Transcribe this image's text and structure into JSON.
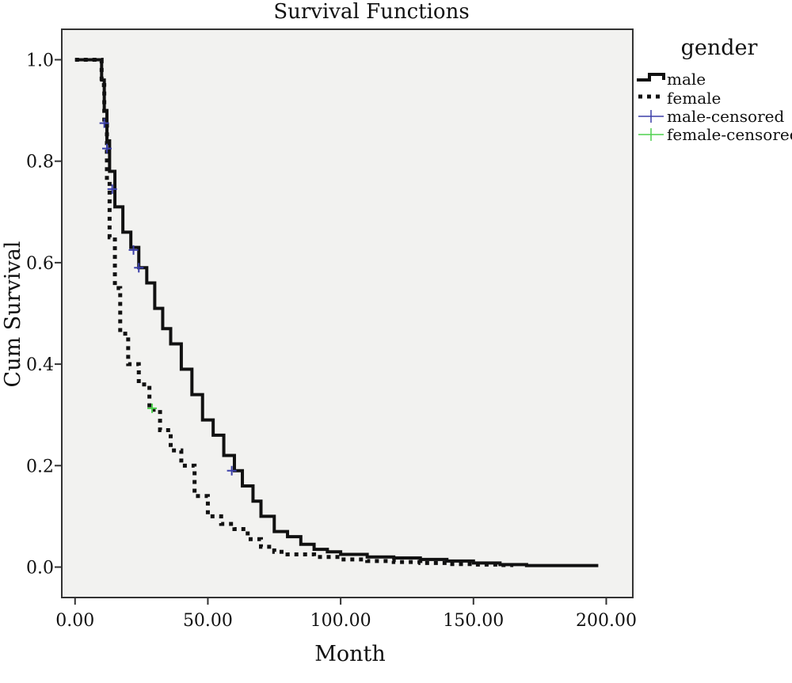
{
  "chart_data": {
    "type": "line",
    "title": "Survival Functions",
    "xlabel": "Month",
    "ylabel": "Cum Survival",
    "xlim": [
      -5,
      210
    ],
    "ylim": [
      -0.06,
      1.06
    ],
    "x_ticks": [
      0,
      50,
      100,
      150,
      200
    ],
    "x_tick_labels": [
      "0.00",
      "50.00",
      "100.00",
      "150.00",
      "200.00"
    ],
    "y_ticks": [
      0.0,
      0.2,
      0.4,
      0.6,
      0.8,
      1.0
    ],
    "y_tick_labels": [
      "0.0",
      "0.2",
      "0.4",
      "0.6",
      "0.8",
      "1.0"
    ],
    "grid": false,
    "plot_background": "#f2f2f0",
    "legend": {
      "title": "gender",
      "placement": "right",
      "entries": [
        {
          "label": "male",
          "style": "solid",
          "color": "#111111"
        },
        {
          "label": "female",
          "style": "dotted",
          "color": "#111111"
        },
        {
          "label": "male-censored",
          "style": "cross",
          "color": "#3b3fa8"
        },
        {
          "label": "female-censored",
          "style": "cross",
          "color": "#4fd04f"
        }
      ]
    },
    "series": [
      {
        "name": "male",
        "style": "solid",
        "color": "#111111",
        "x": [
          0,
          9,
          10,
          11,
          12,
          13,
          15,
          18,
          21,
          24,
          27,
          30,
          33,
          36,
          40,
          44,
          48,
          52,
          56,
          60,
          63,
          67,
          70,
          75,
          80,
          85,
          90,
          95,
          100,
          110,
          120,
          130,
          140,
          150,
          160,
          170,
          180,
          190,
          197
        ],
        "y": [
          1.0,
          1.0,
          0.96,
          0.9,
          0.84,
          0.78,
          0.71,
          0.66,
          0.63,
          0.59,
          0.56,
          0.51,
          0.47,
          0.44,
          0.39,
          0.34,
          0.29,
          0.26,
          0.22,
          0.19,
          0.16,
          0.13,
          0.1,
          0.07,
          0.06,
          0.045,
          0.035,
          0.03,
          0.025,
          0.02,
          0.018,
          0.015,
          0.012,
          0.008,
          0.005,
          0.003,
          0.003,
          0.003,
          0.003
        ]
      },
      {
        "name": "female",
        "style": "dotted",
        "color": "#111111",
        "x": [
          0,
          9,
          10,
          11,
          12,
          13,
          15,
          17,
          20,
          24,
          28,
          32,
          36,
          40,
          45,
          50,
          55,
          60,
          65,
          70,
          75,
          80,
          90,
          100,
          110,
          120,
          130,
          140,
          150,
          160,
          165
        ],
        "y": [
          1.0,
          1.0,
          0.95,
          0.87,
          0.76,
          0.65,
          0.55,
          0.46,
          0.4,
          0.36,
          0.31,
          0.27,
          0.23,
          0.2,
          0.14,
          0.1,
          0.085,
          0.075,
          0.055,
          0.04,
          0.03,
          0.025,
          0.02,
          0.015,
          0.012,
          0.01,
          0.008,
          0.006,
          0.005,
          0.004,
          0.004
        ]
      }
    ],
    "censored": [
      {
        "series": "male-censored",
        "color": "#3b3fa8",
        "x": [
          11,
          12,
          14,
          22,
          24,
          59
        ],
        "y": [
          0.875,
          0.825,
          0.745,
          0.625,
          0.59,
          0.19
        ]
      },
      {
        "series": "female-censored",
        "color": "#4fd04f",
        "x": [
          29
        ],
        "y": [
          0.313
        ]
      }
    ]
  }
}
